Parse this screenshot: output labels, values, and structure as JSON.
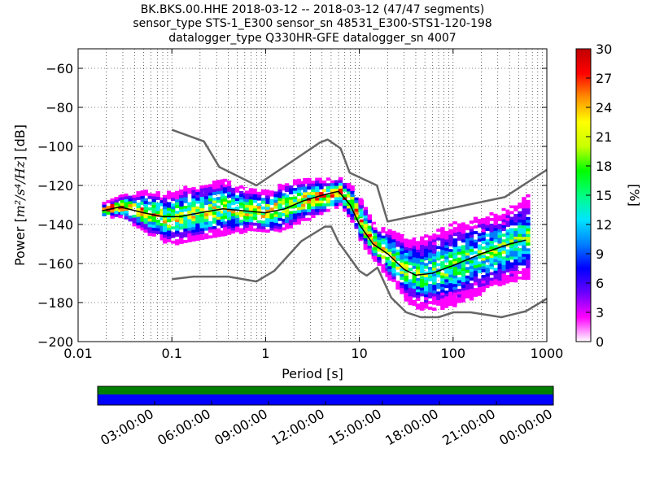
{
  "chart_data": {
    "type": "heatmap",
    "title_lines": [
      "BK.BKS.00.HHE   2018-03-12 -- 2018-03-12  (47/47 segments)",
      "sensor_type STS-1_E300 sensor_sn 48531_E300-STS1-120-198",
      "datalogger_type Q330HR-GFE datalogger_sn 4007"
    ],
    "xlabel": "Period [s]",
    "ylabel_prefix": "Power [",
    "ylabel_unit": "m²/s⁴/Hz",
    "ylabel_suffix": "] [dB]",
    "x_scale": "log",
    "xlim": [
      0.01,
      1000
    ],
    "ylim": [
      -200,
      -50
    ],
    "x_ticks": [
      0.01,
      0.1,
      1,
      10,
      100,
      1000
    ],
    "x_tick_labels": [
      "0.01",
      "0.1",
      "1",
      "10",
      "100",
      "1000"
    ],
    "y_ticks": [
      -200,
      -180,
      -160,
      -140,
      -120,
      -100,
      -80,
      -60
    ],
    "y_tick_labels": [
      "−200",
      "−180",
      "−160",
      "−140",
      "−120",
      "−100",
      "−80",
      "−60"
    ],
    "grid": true,
    "colorbar": {
      "label": "[%]",
      "range": [
        0,
        30
      ],
      "ticks": [
        0,
        3,
        6,
        9,
        12,
        15,
        18,
        21,
        24,
        27,
        30
      ],
      "tick_labels": [
        "0",
        "3",
        "6",
        "9",
        "12",
        "15",
        "18",
        "21",
        "24",
        "27",
        "30"
      ],
      "colors": [
        "#ffffff",
        "#ff00ff",
        "#6a00ff",
        "#0000ff",
        "#0080ff",
        "#00e5ff",
        "#00ff80",
        "#00ff00",
        "#c8ff00",
        "#ffff00",
        "#ff9000",
        "#ff0000",
        "#c00000"
      ]
    },
    "nlnm_series": [
      [
        0.1,
        -168
      ],
      [
        0.17,
        -166.7
      ],
      [
        0.4,
        -166.7
      ],
      [
        0.8,
        -169.2
      ],
      [
        1.24,
        -163.7
      ],
      [
        2.4,
        -148.6
      ],
      [
        4.3,
        -141.1
      ],
      [
        5.0,
        -141.1
      ],
      [
        6.0,
        -149
      ],
      [
        10,
        -163.8
      ],
      [
        12,
        -166.2
      ],
      [
        15.6,
        -162.1
      ],
      [
        21.9,
        -177.5
      ],
      [
        31.6,
        -185
      ],
      [
        45,
        -187.5
      ],
      [
        70,
        -187.5
      ],
      [
        101,
        -185
      ],
      [
        154,
        -185
      ],
      [
        328,
        -187.5
      ],
      [
        600,
        -184.4
      ],
      [
        1000,
        -178
      ]
    ],
    "nhnm_series": [
      [
        0.1,
        -91.5
      ],
      [
        0.22,
        -97.4
      ],
      [
        0.32,
        -110.5
      ],
      [
        0.8,
        -120
      ],
      [
        3.8,
        -98
      ],
      [
        4.6,
        -96.5
      ],
      [
        6.3,
        -101
      ],
      [
        7.9,
        -113.5
      ],
      [
        15.4,
        -120
      ],
      [
        20,
        -138.5
      ],
      [
        354.8,
        -126
      ],
      [
        1000,
        -112
      ]
    ],
    "mode_series": [
      [
        0.018,
        -133
      ],
      [
        0.028,
        -131
      ],
      [
        0.05,
        -134
      ],
      [
        0.08,
        -136
      ],
      [
        0.12,
        -136
      ],
      [
        0.2,
        -134
      ],
      [
        0.35,
        -132
      ],
      [
        0.6,
        -133
      ],
      [
        1.0,
        -134
      ],
      [
        1.6,
        -132
      ],
      [
        2.5,
        -128
      ],
      [
        4.0,
        -125
      ],
      [
        6.0,
        -123
      ],
      [
        8.0,
        -130
      ],
      [
        10,
        -140
      ],
      [
        14,
        -150
      ],
      [
        20,
        -155
      ],
      [
        30,
        -163
      ],
      [
        40,
        -166
      ],
      [
        60,
        -165
      ],
      [
        100,
        -161
      ],
      [
        200,
        -155
      ],
      [
        400,
        -150
      ],
      [
        600,
        -148
      ]
    ],
    "heatmap_band": [
      [
        0.018,
        -132,
        2
      ],
      [
        0.028,
        -130,
        3
      ],
      [
        0.05,
        -133,
        6
      ],
      [
        0.08,
        -136,
        7
      ],
      [
        0.12,
        -135,
        8
      ],
      [
        0.2,
        -133,
        8
      ],
      [
        0.35,
        -131,
        8
      ],
      [
        0.6,
        -132,
        6
      ],
      [
        1.0,
        -133,
        6
      ],
      [
        1.6,
        -130,
        7
      ],
      [
        2.5,
        -127,
        6
      ],
      [
        4.0,
        -125,
        5
      ],
      [
        6.0,
        -123,
        4
      ],
      [
        8.0,
        -129,
        5
      ],
      [
        10,
        -138,
        6
      ],
      [
        14,
        -149,
        5
      ],
      [
        20,
        -155,
        7
      ],
      [
        30,
        -162,
        9
      ],
      [
        40,
        -165,
        10
      ],
      [
        60,
        -163,
        11
      ],
      [
        100,
        -160,
        12
      ],
      [
        200,
        -155,
        11
      ],
      [
        400,
        -150,
        11
      ],
      [
        600,
        -146,
        12
      ]
    ],
    "timeline": {
      "tick_labels": [
        "03:00:00",
        "06:00:00",
        "09:00:00",
        "12:00:00",
        "15:00:00",
        "18:00:00",
        "21:00:00",
        "00:00:00"
      ],
      "top_color": "#007f00",
      "bottom_color": "#0000ff"
    }
  }
}
